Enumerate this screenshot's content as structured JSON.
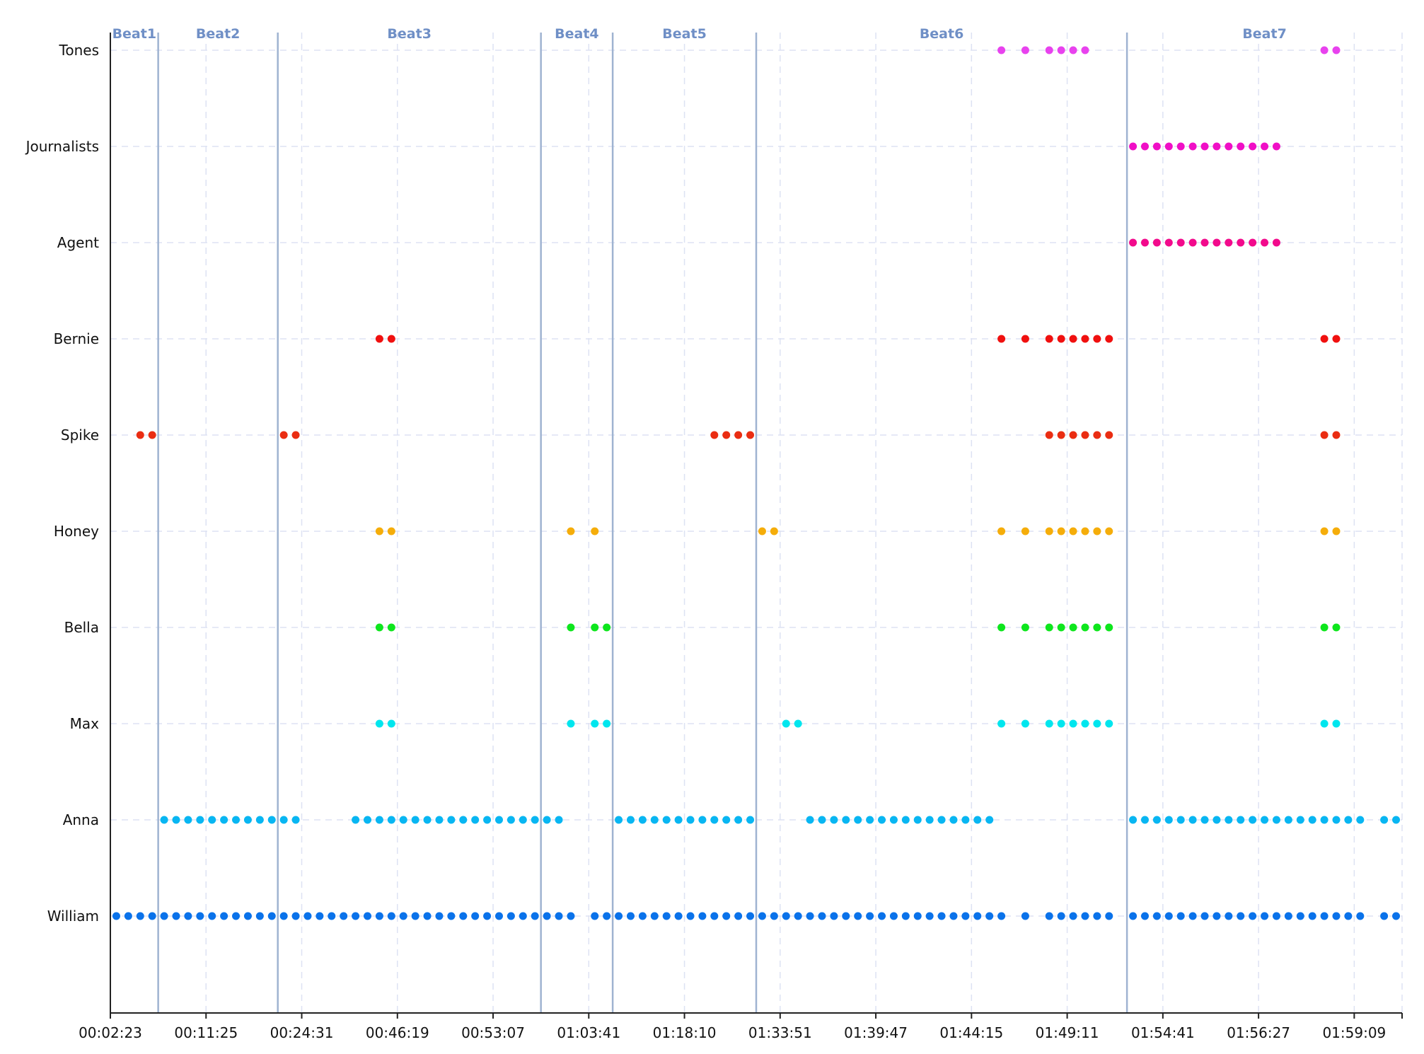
{
  "chart_data": {
    "type": "scatter",
    "title": "",
    "xlabel": "",
    "ylabel": "",
    "grid": true,
    "x_ticks": [
      "00:02:23",
      "00:11:25",
      "00:24:31",
      "00:46:19",
      "00:53:07",
      "01:03:41",
      "01:18:10",
      "01:33:51",
      "01:39:47",
      "01:44:15",
      "01:49:11",
      "01:54:41",
      "01:56:27",
      "01:59:09"
    ],
    "scene_range": [
      0,
      54
    ],
    "characters": [
      "William",
      "Anna",
      "Max",
      "Bella",
      "Honey",
      "Spike",
      "Bernie",
      "Agent",
      "Journalists",
      "Tones"
    ],
    "beats": [
      {
        "name": "Beat1",
        "start": 0,
        "end": 2
      },
      {
        "name": "Beat2",
        "start": 2,
        "end": 7
      },
      {
        "name": "Beat3",
        "start": 7,
        "end": 18
      },
      {
        "name": "Beat4",
        "start": 18,
        "end": 21
      },
      {
        "name": "Beat5",
        "start": 21,
        "end": 27
      },
      {
        "name": "Beat6",
        "start": 27,
        "end": 42.5
      },
      {
        "name": "Beat7",
        "start": 42.5,
        "end": 54
      }
    ],
    "series": [
      {
        "name": "William",
        "color": "#0a72ea",
        "x": [
          0.25,
          0.75,
          1.25,
          1.75,
          2.25,
          2.75,
          3.25,
          3.75,
          4.25,
          4.75,
          5.25,
          5.75,
          6.25,
          6.75,
          7.25,
          7.75,
          8.25,
          8.75,
          9.25,
          9.75,
          10.25,
          10.75,
          11.25,
          11.75,
          12.25,
          12.75,
          13.25,
          13.75,
          14.25,
          14.75,
          15.25,
          15.75,
          16.25,
          16.75,
          17.25,
          17.75,
          18.25,
          18.75,
          19.25,
          20.25,
          20.75,
          21.25,
          21.75,
          22.25,
          22.75,
          23.25,
          23.75,
          24.25,
          24.75,
          25.25,
          25.75,
          26.25,
          26.75,
          27.25,
          27.75,
          28.25,
          28.75,
          29.25,
          29.75,
          30.25,
          30.75,
          31.25,
          31.75,
          32.25,
          32.75,
          33.25,
          33.75,
          34.25,
          34.75,
          35.25,
          35.75,
          36.25,
          36.75,
          37.25,
          38.25,
          39.25,
          39.75,
          40.25,
          40.75,
          41.25,
          41.75,
          42.75,
          43.25,
          43.75,
          44.25,
          44.75,
          45.25,
          45.75,
          46.25,
          46.75,
          47.25,
          47.75,
          48.25,
          48.75,
          49.25,
          49.75,
          50.25,
          50.75,
          51.25,
          51.75,
          52.25,
          53.25,
          53.75
        ]
      },
      {
        "name": "Anna",
        "color": "#08b6f2",
        "x": [
          2.25,
          2.75,
          3.25,
          3.75,
          4.25,
          4.75,
          5.25,
          5.75,
          6.25,
          6.75,
          7.25,
          7.75,
          10.25,
          10.75,
          11.25,
          11.75,
          12.25,
          12.75,
          13.25,
          13.75,
          14.25,
          14.75,
          15.25,
          15.75,
          16.25,
          16.75,
          17.25,
          17.75,
          18.25,
          18.75,
          21.25,
          21.75,
          22.25,
          22.75,
          23.25,
          23.75,
          24.25,
          24.75,
          25.25,
          25.75,
          26.25,
          26.75,
          29.25,
          29.75,
          30.25,
          30.75,
          31.25,
          31.75,
          32.25,
          32.75,
          33.25,
          33.75,
          34.25,
          34.75,
          35.25,
          35.75,
          36.25,
          36.75,
          42.75,
          43.25,
          43.75,
          44.25,
          44.75,
          45.25,
          45.75,
          46.25,
          46.75,
          47.25,
          47.75,
          48.25,
          48.75,
          49.25,
          49.75,
          50.25,
          50.75,
          51.25,
          51.75,
          52.25,
          53.25,
          53.75
        ]
      },
      {
        "name": "Max",
        "color": "#00e6ee",
        "x": [
          11.25,
          11.75,
          19.25,
          20.25,
          20.75,
          28.25,
          28.75,
          37.25,
          38.25,
          39.25,
          39.75,
          40.25,
          40.75,
          41.25,
          41.75,
          50.75,
          51.25
        ]
      },
      {
        "name": "Bella",
        "color": "#0ee61d",
        "x": [
          11.25,
          11.75,
          19.25,
          20.25,
          20.75,
          37.25,
          38.25,
          39.25,
          39.75,
          40.25,
          40.75,
          41.25,
          41.75,
          50.75,
          51.25
        ]
      },
      {
        "name": "Honey",
        "color": "#f5ad0a",
        "x": [
          11.25,
          11.75,
          19.25,
          20.25,
          27.25,
          27.75,
          37.25,
          38.25,
          39.25,
          39.75,
          40.25,
          40.75,
          41.25,
          41.75,
          50.75,
          51.25
        ]
      },
      {
        "name": "Spike",
        "color": "#ea2d12",
        "x": [
          1.25,
          1.75,
          7.25,
          7.75,
          25.25,
          25.75,
          26.25,
          26.75,
          39.25,
          39.75,
          40.25,
          40.75,
          41.25,
          41.75,
          50.75,
          51.25
        ]
      },
      {
        "name": "Bernie",
        "color": "#f0100f",
        "x": [
          11.25,
          11.75,
          37.25,
          38.25,
          39.25,
          39.75,
          40.25,
          40.75,
          41.25,
          41.75,
          50.75,
          51.25
        ]
      },
      {
        "name": "Agent",
        "color": "#f20a8c",
        "x": [
          42.75,
          43.25,
          43.75,
          44.25,
          44.75,
          45.25,
          45.75,
          46.25,
          46.75,
          47.25,
          47.75,
          48.25,
          48.75
        ]
      },
      {
        "name": "Journalists",
        "color": "#f00fc6",
        "x": [
          42.75,
          43.25,
          43.75,
          44.25,
          44.75,
          45.25,
          45.75,
          46.25,
          46.75,
          47.25,
          47.75,
          48.25,
          48.75
        ]
      },
      {
        "name": "Tones",
        "color": "#e842ee",
        "x": [
          37.25,
          38.25,
          39.25,
          39.75,
          40.25,
          40.75,
          50.75,
          51.25
        ]
      }
    ]
  }
}
